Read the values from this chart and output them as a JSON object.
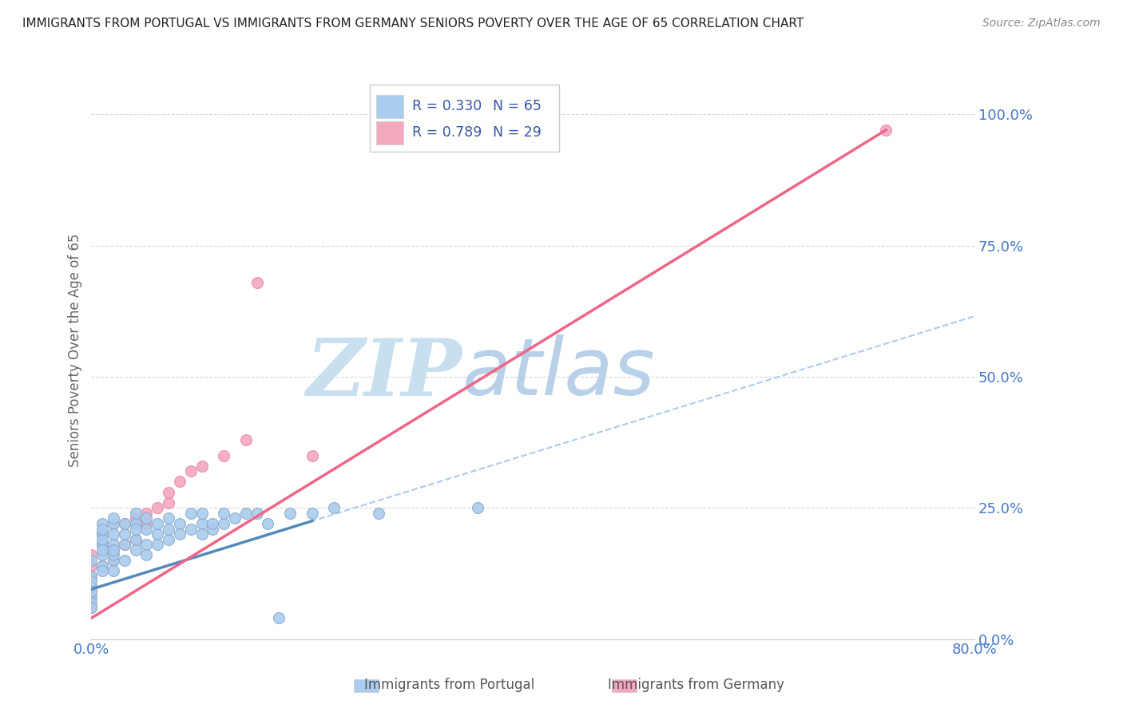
{
  "title": "IMMIGRANTS FROM PORTUGAL VS IMMIGRANTS FROM GERMANY SENIORS POVERTY OVER THE AGE OF 65 CORRELATION CHART",
  "source": "Source: ZipAtlas.com",
  "ylabel": "Seniors Poverty Over the Age of 65",
  "xlabel_portugal": "Immigrants from Portugal",
  "xlabel_germany": "Immigrants from Germany",
  "xmin": 0.0,
  "xmax": 0.8,
  "ymin": 0.0,
  "ymax": 1.1,
  "yticks": [
    0.0,
    0.25,
    0.5,
    0.75,
    1.0
  ],
  "ytick_labels": [
    "0.0%",
    "25.0%",
    "50.0%",
    "75.0%",
    "100.0%"
  ],
  "xticks": [
    0.0,
    0.8
  ],
  "xtick_labels": [
    "0.0%",
    "80.0%"
  ],
  "R_portugal": 0.33,
  "N_portugal": 65,
  "R_germany": 0.789,
  "N_germany": 29,
  "portugal_color": "#aaccee",
  "germany_color": "#f4a8be",
  "portugal_edge_color": "#88aacc",
  "germany_edge_color": "#e888a8",
  "trendline_portugal_color": "#5588bb",
  "trendline_germany_color": "#ee6688",
  "trendline_dashed_color": "#aaccee",
  "axis_color": "#4477cc",
  "legend_text_color": "#3355aa",
  "watermark_zip_color": "#c8dff0",
  "watermark_atlas_color": "#b8d0e8",
  "background_color": "#ffffff",
  "grid_color": "#cccccc",
  "portugal_scatter_x": [
    0.0,
    0.0,
    0.0,
    0.0,
    0.0,
    0.0,
    0.0,
    0.0,
    0.01,
    0.01,
    0.01,
    0.01,
    0.01,
    0.01,
    0.01,
    0.01,
    0.01,
    0.02,
    0.02,
    0.02,
    0.02,
    0.02,
    0.02,
    0.02,
    0.02,
    0.03,
    0.03,
    0.03,
    0.03,
    0.04,
    0.04,
    0.04,
    0.04,
    0.04,
    0.05,
    0.05,
    0.05,
    0.05,
    0.06,
    0.06,
    0.06,
    0.07,
    0.07,
    0.07,
    0.08,
    0.08,
    0.09,
    0.09,
    0.1,
    0.1,
    0.1,
    0.11,
    0.11,
    0.12,
    0.12,
    0.13,
    0.14,
    0.15,
    0.16,
    0.17,
    0.18,
    0.2,
    0.22,
    0.26,
    0.35
  ],
  "portugal_scatter_y": [
    0.1,
    0.08,
    0.07,
    0.12,
    0.15,
    0.11,
    0.06,
    0.09,
    0.2,
    0.22,
    0.18,
    0.14,
    0.19,
    0.16,
    0.21,
    0.17,
    0.13,
    0.18,
    0.22,
    0.15,
    0.2,
    0.16,
    0.13,
    0.17,
    0.23,
    0.2,
    0.18,
    0.22,
    0.15,
    0.22,
    0.17,
    0.19,
    0.24,
    0.21,
    0.21,
    0.18,
    0.23,
    0.16,
    0.2,
    0.22,
    0.18,
    0.23,
    0.19,
    0.21,
    0.22,
    0.2,
    0.21,
    0.24,
    0.22,
    0.2,
    0.24,
    0.21,
    0.22,
    0.22,
    0.24,
    0.23,
    0.24,
    0.24,
    0.22,
    0.04,
    0.24,
    0.24,
    0.25,
    0.24,
    0.25
  ],
  "germany_scatter_x": [
    0.0,
    0.0,
    0.0,
    0.0,
    0.0,
    0.0,
    0.01,
    0.01,
    0.01,
    0.02,
    0.02,
    0.02,
    0.03,
    0.03,
    0.04,
    0.04,
    0.05,
    0.05,
    0.06,
    0.07,
    0.07,
    0.08,
    0.09,
    0.1,
    0.12,
    0.14,
    0.15,
    0.2,
    0.72
  ],
  "germany_scatter_y": [
    0.06,
    0.08,
    0.1,
    0.12,
    0.14,
    0.16,
    0.14,
    0.18,
    0.2,
    0.15,
    0.17,
    0.22,
    0.18,
    0.22,
    0.19,
    0.23,
    0.22,
    0.24,
    0.25,
    0.26,
    0.28,
    0.3,
    0.32,
    0.33,
    0.35,
    0.38,
    0.68,
    0.35,
    0.97
  ],
  "portugal_trend_x": [
    0.0,
    0.2
  ],
  "portugal_trend_y": [
    0.095,
    0.225
  ],
  "germany_trend_x": [
    0.0,
    0.72
  ],
  "germany_trend_y": [
    0.04,
    0.97
  ],
  "dashed_trend_x": [
    0.0,
    0.8
  ],
  "dashed_trend_y": [
    0.095,
    0.615
  ]
}
